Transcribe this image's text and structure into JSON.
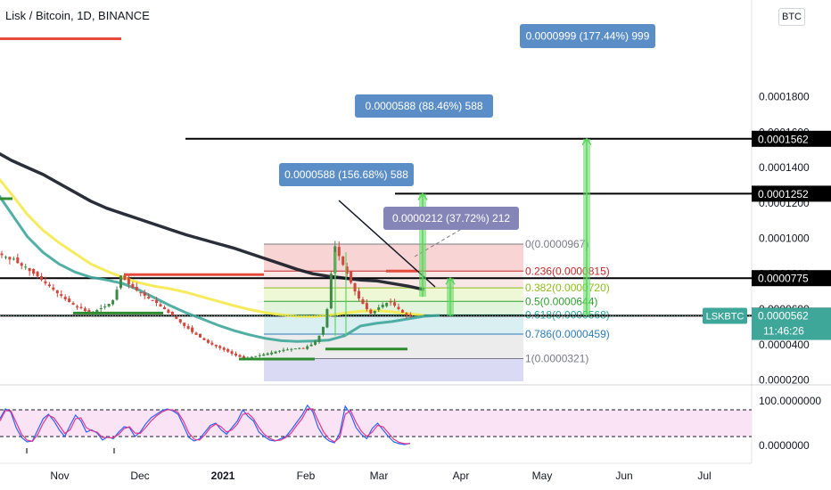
{
  "title": "Lisk / Bitcoin, 1D, BINANCE",
  "currency_button": "BTC",
  "colors": {
    "ma_black": "#131722",
    "ma_yellow": "#f5e94a",
    "ma_teal": "#3fa69a",
    "up_candle": "#3d8a46",
    "down_candle": "#d4453a",
    "support_green": "#2e8b2e",
    "resistance_red": "#e64a3b",
    "callout_blue": "#5b8ec6",
    "callout_purple": "#8585b8",
    "arrow_green": "#5cd65c",
    "stoch_k": "#2962ff",
    "stoch_d": "#e0368a",
    "stoch_band": "#fbe3f6"
  },
  "chart_data": [
    {
      "type": "candlestick",
      "panel": "price",
      "y_scale": "linear",
      "ylim": [
        2e-05,
        0.00018
      ],
      "x_tick_labels": [
        "Nov",
        "Dec",
        "2021",
        "Feb",
        "Mar",
        "Apr",
        "May",
        "Jun",
        "Jul"
      ],
      "y_tick_labels": [
        "0.0000200",
        "0.0000400",
        "0.0000600",
        "0.0000800",
        "0.0001000",
        "0.0001200",
        "0.0001400",
        "0.0001600",
        "0.0001800"
      ],
      "last_price_tag": {
        "symbol": "LSKBTC",
        "price": "0.0000562",
        "countdown": "11:46:26"
      },
      "levels": [
        {
          "value": 0.0001562,
          "label": "0.0001562"
        },
        {
          "value": 0.0001252,
          "label": "0.0001252"
        },
        {
          "value": 7.75e-05,
          "label": "0.0000775"
        },
        {
          "value": 5.63e-05,
          "label": "0.0000563"
        }
      ],
      "fibonacci": [
        {
          "ratio": "0",
          "value": 9.67e-05,
          "label": "0(0.0000967)",
          "color": "#787b86"
        },
        {
          "ratio": "0.236",
          "value": 8.15e-05,
          "label": "0.236(0.0000815)",
          "color": "#c62828"
        },
        {
          "ratio": "0.382",
          "value": 7.2e-05,
          "label": "0.382(0.0000720)",
          "color": "#8bbd1a"
        },
        {
          "ratio": "0.5",
          "value": 6.44e-05,
          "label": "0.5(0.0000644)",
          "color": "#2e9d2e"
        },
        {
          "ratio": "0.618",
          "value": 5.68e-05,
          "label": "0.618(0.0000568)",
          "color": "#26a69a"
        },
        {
          "ratio": "0.786",
          "value": 4.59e-05,
          "label": "0.786(0.0000459)",
          "color": "#2b7bb9"
        },
        {
          "ratio": "1",
          "value": 3.21e-05,
          "label": "1(0.0000321)",
          "color": "#787b86"
        }
      ],
      "measure_callouts": [
        {
          "text": "0.0000588 (156.68%) 588",
          "color": "blue"
        },
        {
          "text": "0.0000212 (37.72%) 212",
          "color": "purple"
        },
        {
          "text": "0.0000588 (88.46%) 588",
          "color": "blue"
        },
        {
          "text": "0.0000999 (177.44%) 999",
          "color": "blue"
        }
      ],
      "projected_moves": [
        {
          "from": 6.7e-05,
          "to": 0.0001252
        },
        {
          "from": 5.6e-05,
          "to": 7.75e-05
        },
        {
          "from": 5.63e-05,
          "to": 0.0001562
        }
      ],
      "support_lines": [
        {
          "value": 5.78e-05,
          "period": "Nov"
        },
        {
          "value": 3.18e-05,
          "period": "Jan"
        },
        {
          "value": 3.75e-05,
          "period": "Feb-Mar"
        }
      ],
      "resistance_lines": [
        {
          "value": 7.95e-05,
          "period": "Dec-Jan"
        }
      ],
      "candles_close": [
        9.05e-05,
        8.95e-05,
        8.8e-05,
        8.85e-05,
        8.6e-05,
        8.45e-05,
        8.4e-05,
        8.15e-05,
        8e-05,
        7.85e-05,
        7.65e-05,
        7.45e-05,
        7.3e-05,
        7.1e-05,
        6.9e-05,
        6.75e-05,
        6.55e-05,
        6.4e-05,
        6.25e-05,
        6.1e-05,
        6.05e-05,
        5.9e-05,
        5.8e-05,
        5.85e-05,
        5.95e-05,
        6.05e-05,
        6.15e-05,
        6.3e-05,
        6.5e-05,
        7.1e-05,
        7.9e-05,
        7.65e-05,
        7.4e-05,
        7.2e-05,
        7.05e-05,
        6.9e-05,
        6.75e-05,
        6.6e-05,
        6.5e-05,
        6.35e-05,
        6.15e-05,
        6e-05,
        5.8e-05,
        5.65e-05,
        5.45e-05,
        5.25e-05,
        5.05e-05,
        4.9e-05,
        4.7e-05,
        4.55e-05,
        4.4e-05,
        4.25e-05,
        4.1e-05,
        4e-05,
        3.9e-05,
        3.8e-05,
        3.7e-05,
        3.6e-05,
        3.48e-05,
        3.38e-05,
        3.3e-05,
        3.22e-05,
        3.25e-05,
        3.3e-05,
        3.35e-05,
        3.4e-05,
        3.45e-05,
        3.5e-05,
        3.55e-05,
        3.6e-05,
        3.65e-05,
        3.7e-05,
        3.72e-05,
        3.75e-05,
        3.78e-05,
        3.8e-05,
        3.8e-05,
        3.9e-05,
        4e-05,
        4.2e-05,
        4.5e-05,
        5e-05,
        6e-05,
        8e-05,
        9.55e-05,
        9e-05,
        8.5e-05,
        8e-05,
        7.5e-05,
        7e-05,
        6.6e-05,
        6.3e-05,
        6e-05,
        5.75e-05,
        5.9e-05,
        6.1e-05,
        6.25e-05,
        6.35e-05,
        6.4e-05,
        6.2e-05,
        6e-05,
        5.8e-05,
        5.65e-05,
        5.62e-05
      ],
      "moving_averages": [
        {
          "color": "black",
          "values": [
            0.000149,
            0.000144,
            0.00014,
            0.000136,
            0.000131,
            0.000126,
            0.000121,
            0.000117,
            0.000114,
            0.000111,
            0.000108,
            0.000105,
            0.000102,
            9.95e-05,
            9.7e-05,
            9.45e-05,
            9.15e-05,
            8.85e-05,
            8.55e-05,
            8.25e-05,
            8e-05,
            7.85e-05,
            7.75e-05,
            7.65e-05,
            7.6e-05,
            7.45e-05,
            7.3e-05,
            7.1e-05
          ]
        },
        {
          "color": "yellow",
          "values": [
            0.000136,
            0.000125,
            0.0001135,
            0.0001045,
            9.75e-05,
            9.15e-05,
            8.55e-05,
            8.15e-05,
            7.8e-05,
            7.5e-05,
            7.3e-05,
            7.15e-05,
            6.95e-05,
            6.7e-05,
            6.45e-05,
            6.2e-05,
            5.98e-05,
            5.8e-05,
            5.68e-05,
            5.6e-05,
            5.58e-05,
            5.65e-05,
            5.78e-05,
            5.88e-05,
            5.92e-05,
            5.85e-05,
            5.75e-05,
            5.65e-05
          ]
        },
        {
          "color": "teal",
          "values": [
            0.000127,
            0.000114,
            0.000101,
            9.2e-05,
            8.55e-05,
            8.1e-05,
            7.8e-05,
            7.65e-05,
            7.45e-05,
            7.1e-05,
            6.65e-05,
            6.2e-05,
            5.8e-05,
            5.45e-05,
            5.1e-05,
            4.8e-05,
            4.55e-05,
            4.35e-05,
            4.22e-05,
            4.18e-05,
            4.2e-05,
            4.25e-05,
            4.5e-05,
            5.05e-05,
            5.2e-05,
            5.3e-05,
            5.45e-05,
            5.6e-05,
            5.65e-05
          ]
        }
      ]
    },
    {
      "type": "line",
      "panel": "stochastic_rsi",
      "ylim": [
        0,
        100
      ],
      "y_tick_labels": [
        "100.0000000",
        "0.0000000"
      ],
      "bands": [
        80,
        20
      ],
      "series": [
        {
          "color": "blue",
          "values": [
            60,
            82,
            75,
            40,
            18,
            8,
            10,
            35,
            60,
            70,
            55,
            35,
            20,
            45,
            68,
            55,
            30,
            35,
            28,
            12,
            20,
            15,
            30,
            42,
            40,
            20,
            30,
            48,
            62,
            70,
            78,
            82,
            78,
            70,
            45,
            18,
            10,
            15,
            30,
            45,
            50,
            35,
            25,
            40,
            55,
            80,
            65,
            55,
            30,
            20,
            12,
            10,
            15,
            20,
            35,
            52,
            68,
            90,
            75,
            40,
            20,
            10,
            6,
            28,
            88,
            70,
            40,
            25,
            15,
            38,
            50,
            35,
            20,
            8,
            4,
            2,
            5
          ]
        },
        {
          "color": "pink",
          "values": [
            55,
            78,
            78,
            52,
            25,
            12,
            9,
            25,
            50,
            68,
            62,
            45,
            27,
            35,
            60,
            62,
            40,
            33,
            30,
            18,
            18,
            17,
            25,
            38,
            42,
            28,
            27,
            40,
            55,
            66,
            75,
            80,
            80,
            74,
            55,
            28,
            14,
            12,
            24,
            40,
            48,
            42,
            30,
            35,
            48,
            70,
            72,
            60,
            40,
            25,
            16,
            11,
            12,
            18,
            28,
            45,
            60,
            82,
            82,
            55,
            30,
            15,
            8,
            18,
            70,
            78,
            52,
            32,
            20,
            30,
            45,
            42,
            28,
            14,
            7,
            4,
            4
          ]
        }
      ]
    }
  ]
}
